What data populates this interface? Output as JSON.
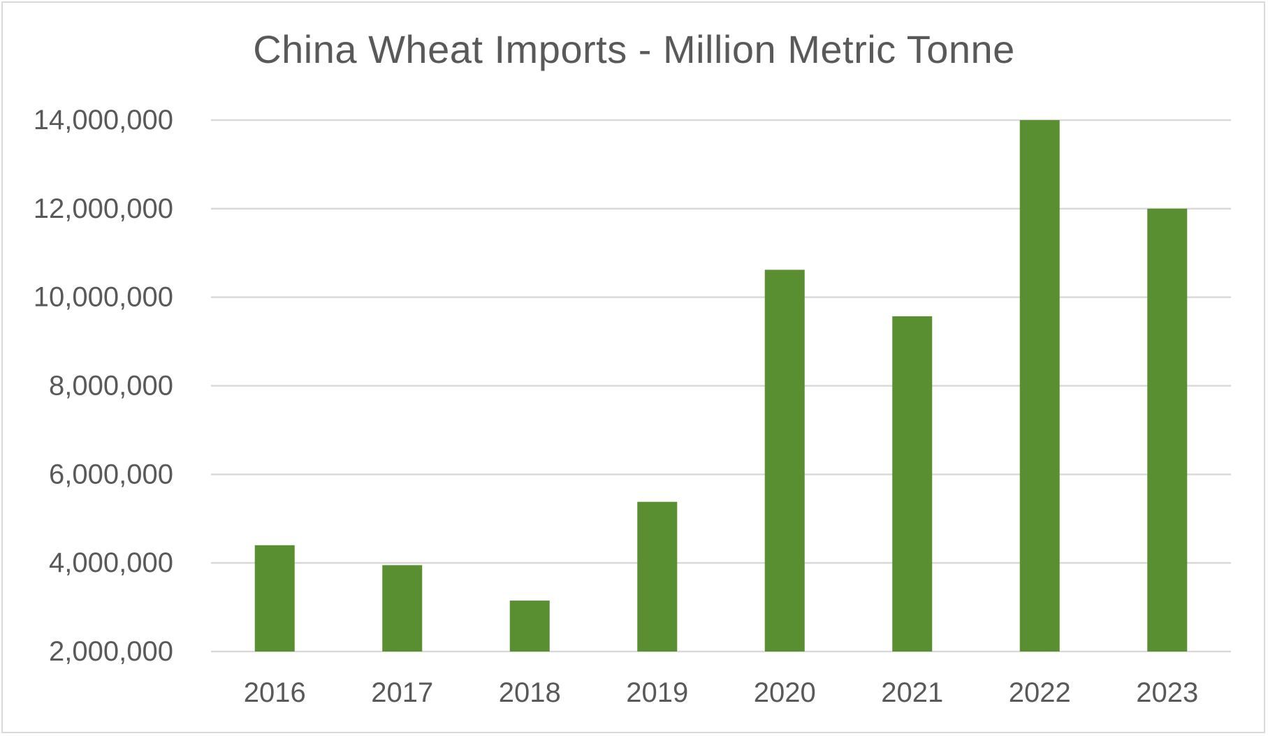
{
  "chart_data": {
    "type": "bar",
    "title": "China Wheat Imports - Million Metric Tonne",
    "xlabel": "",
    "ylabel": "",
    "categories": [
      "2016",
      "2017",
      "2018",
      "2019",
      "2020",
      "2021",
      "2022",
      "2023"
    ],
    "values": [
      4400000,
      3950000,
      3150000,
      5380000,
      10620000,
      9570000,
      14000000,
      12000000
    ],
    "ylim": [
      2000000,
      14000000
    ],
    "yticks": [
      2000000,
      4000000,
      6000000,
      8000000,
      10000000,
      12000000,
      14000000
    ],
    "ytick_labels": [
      "2,000,000",
      "4,000,000",
      "6,000,000",
      "8,000,000",
      "10,000,000",
      "12,000,000",
      "14,000,000"
    ],
    "grid": true,
    "legend": "none",
    "bar_color": "#5a8f31",
    "grid_color": "#d9d9d9",
    "text_color": "#595959"
  }
}
